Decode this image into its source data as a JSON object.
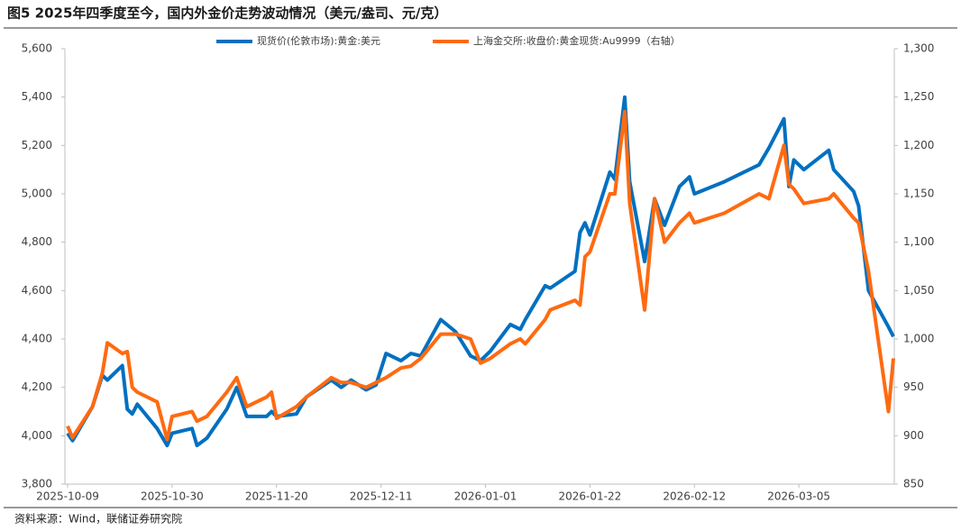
{
  "chart_data": {
    "type": "line",
    "title": "图5  2025年四季度至今，国内外金价走势波动情况（美元/盎司、元/克）",
    "source": "资料来源：Wind，联储证券研究院",
    "x": [
      "2025-10-09",
      "2025-10-10",
      "2025-10-14",
      "2025-10-16",
      "2025-10-17",
      "2025-10-20",
      "2025-10-21",
      "2025-10-22",
      "2025-10-23",
      "2025-10-27",
      "2025-10-29",
      "2025-10-30",
      "2025-11-03",
      "2025-11-04",
      "2025-11-06",
      "2025-11-10",
      "2025-11-12",
      "2025-11-14",
      "2025-11-18",
      "2025-11-19",
      "2025-11-20",
      "2025-11-24",
      "2025-11-26",
      "2025-12-01",
      "2025-12-03",
      "2025-12-05",
      "2025-12-08",
      "2025-12-10",
      "2025-12-12",
      "2025-12-15",
      "2025-12-17",
      "2025-12-19",
      "2025-12-23",
      "2025-12-26",
      "2025-12-29",
      "2025-12-31",
      "2026-01-02",
      "2026-01-06",
      "2026-01-08",
      "2026-01-09",
      "2026-01-13",
      "2026-01-14",
      "2026-01-19",
      "2026-01-20",
      "2026-01-21",
      "2026-01-22",
      "2026-01-26",
      "2026-01-27",
      "2026-01-29",
      "2026-01-30",
      "2026-02-02",
      "2026-02-04",
      "2026-02-06",
      "2026-02-09",
      "2026-02-11",
      "2026-02-12",
      "2026-02-18",
      "2026-02-25",
      "2026-02-27",
      "2026-03-02",
      "2026-03-03",
      "2026-03-04",
      "2026-03-06",
      "2026-03-11",
      "2026-03-12",
      "2026-03-16",
      "2026-03-17",
      "2026-03-19",
      "2026-03-23",
      "2026-03-24"
    ],
    "series": [
      {
        "name": "现货价(伦敦市场):黄金:美元",
        "color": "#0070c0",
        "axis": "y",
        "values": [
          4010,
          3980,
          4120,
          4250,
          4230,
          4290,
          4110,
          4090,
          4130,
          4030,
          3960,
          4010,
          4030,
          3960,
          3990,
          4110,
          4200,
          4080,
          4080,
          4100,
          4080,
          4090,
          4160,
          4230,
          4200,
          4230,
          4190,
          4210,
          4340,
          4310,
          4340,
          4330,
          4480,
          4430,
          4330,
          4310,
          4350,
          4460,
          4440,
          4480,
          4620,
          4610,
          4680,
          4840,
          4880,
          4830,
          5090,
          5060,
          5400,
          5050,
          4720,
          4980,
          4870,
          5030,
          5070,
          5000,
          5050,
          5120,
          5190,
          5310,
          5030,
          5140,
          5100,
          5180,
          5100,
          5010,
          4950,
          4600,
          4450,
          4410
        ]
      },
      {
        "name": "上海金交所:收盘价:黄金现货:Au9999（右轴）",
        "color": "#ff6a10",
        "axis": "y2",
        "values": [
          910,
          898,
          930,
          965,
          996,
          985,
          987,
          950,
          945,
          935,
          896,
          920,
          925,
          915,
          920,
          945,
          960,
          930,
          940,
          945,
          918,
          930,
          940,
          960,
          955,
          955,
          950,
          955,
          960,
          970,
          972,
          980,
          1005,
          1005,
          1000,
          975,
          980,
          995,
          1000,
          995,
          1020,
          1030,
          1040,
          1035,
          1085,
          1090,
          1150,
          1150,
          1235,
          1140,
          1030,
          1145,
          1100,
          1120,
          1130,
          1120,
          1130,
          1150,
          1145,
          1200,
          1160,
          1155,
          1140,
          1145,
          1150,
          1125,
          1120,
          1070,
          925,
          980
        ]
      }
    ],
    "xlim": [
      "2025-10-09",
      "2026-03-24"
    ],
    "xticks": [
      "2025-10-09",
      "2025-10-30",
      "2025-11-20",
      "2025-12-11",
      "2026-01-01",
      "2026-01-22",
      "2026-02-12",
      "2026-03-05"
    ],
    "ylim": [
      3800,
      5600
    ],
    "yticks": [
      {
        "value": 3800,
        "label": "3,800"
      },
      {
        "value": 4000,
        "label": "4,000"
      },
      {
        "value": 4200,
        "label": "4,200"
      },
      {
        "value": 4400,
        "label": "4,400"
      },
      {
        "value": 4600,
        "label": "4,600"
      },
      {
        "value": 4800,
        "label": "4,800"
      },
      {
        "value": 5000,
        "label": "5,000"
      },
      {
        "value": 5200,
        "label": "5,200"
      },
      {
        "value": 5400,
        "label": "5,400"
      },
      {
        "value": 5600,
        "label": "5,600"
      }
    ],
    "y2lim": [
      850,
      1300
    ],
    "y2ticks": [
      850,
      900,
      950,
      {
        "value": 1000,
        "label": "1,000"
      },
      {
        "value": 1050,
        "label": "1,050"
      },
      {
        "value": 1100,
        "label": "1,100"
      },
      {
        "value": 1150,
        "label": "1,150"
      },
      {
        "value": 1200,
        "label": "1,200"
      },
      {
        "value": 1250,
        "label": "1,250"
      },
      {
        "value": 1300,
        "label": "1,300"
      }
    ],
    "grid": false,
    "legend": "top"
  }
}
